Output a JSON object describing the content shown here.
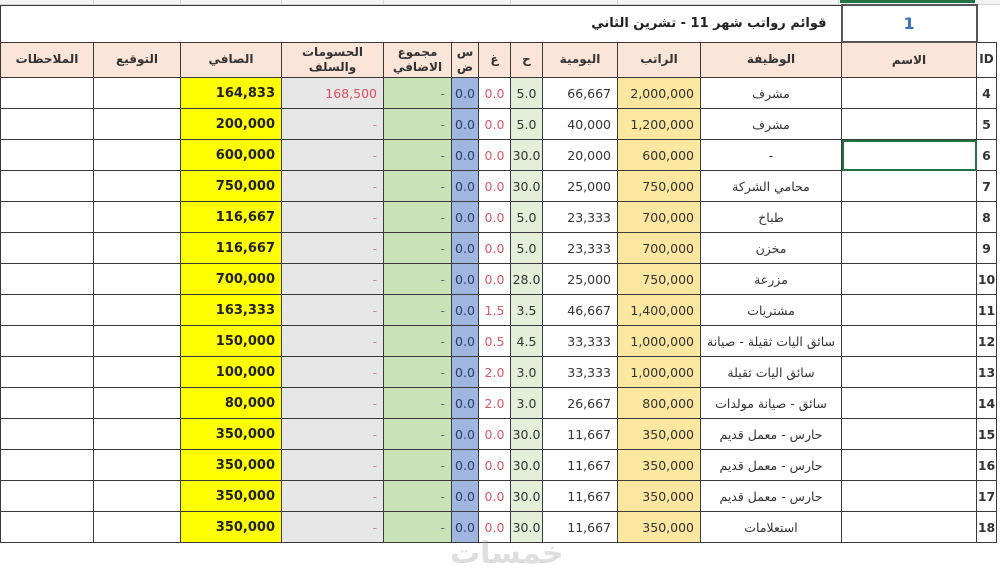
{
  "sheet": {
    "title": "قوائم رواتب شهر 11 - تشرين الثاني",
    "page_number": "1",
    "headers": {
      "notes": "الملاحظات",
      "signature": "التوقيع",
      "net": "الصافي",
      "deductions": "الحسومات والسلف",
      "overtime_total": "مجموع الاضافي",
      "sd": "س ض",
      "gh": "غ",
      "h": "ح",
      "daily": "اليومية",
      "salary": "الراتب",
      "job": "الوظيفة",
      "name": "الاسم",
      "id": "ID"
    },
    "rows": [
      {
        "id": "4",
        "name": "",
        "job": "مشرف",
        "salary": "2,000,000",
        "daily": "66,667",
        "h": "5.0",
        "gh": "0.0",
        "sd": "0.0",
        "overtime_total": "-",
        "deductions": "168,500",
        "net": "164,833",
        "signature": "",
        "notes": ""
      },
      {
        "id": "5",
        "name": "",
        "job": "مشرف",
        "salary": "1,200,000",
        "daily": "40,000",
        "h": "5.0",
        "gh": "0.0",
        "sd": "0.0",
        "overtime_total": "-",
        "deductions": "-",
        "net": "200,000",
        "signature": "",
        "notes": ""
      },
      {
        "id": "6",
        "name": "",
        "job": "-",
        "salary": "600,000",
        "daily": "20,000",
        "h": "30.0",
        "gh": "0.0",
        "sd": "0.0",
        "overtime_total": "-",
        "deductions": "-",
        "net": "600,000",
        "signature": "",
        "notes": ""
      },
      {
        "id": "7",
        "name": "",
        "job": "محامي الشركة",
        "salary": "750,000",
        "daily": "25,000",
        "h": "30.0",
        "gh": "0.0",
        "sd": "0.0",
        "overtime_total": "-",
        "deductions": "-",
        "net": "750,000",
        "signature": "",
        "notes": ""
      },
      {
        "id": "8",
        "name": "",
        "job": "طباخ",
        "salary": "700,000",
        "daily": "23,333",
        "h": "5.0",
        "gh": "0.0",
        "sd": "0.0",
        "overtime_total": "-",
        "deductions": "-",
        "net": "116,667",
        "signature": "",
        "notes": ""
      },
      {
        "id": "9",
        "name": "",
        "job": "مخزن",
        "salary": "700,000",
        "daily": "23,333",
        "h": "5.0",
        "gh": "0.0",
        "sd": "0.0",
        "overtime_total": "-",
        "deductions": "-",
        "net": "116,667",
        "signature": "",
        "notes": ""
      },
      {
        "id": "10",
        "name": "",
        "job": "مزرعة",
        "salary": "750,000",
        "daily": "25,000",
        "h": "28.0",
        "gh": "0.0",
        "sd": "0.0",
        "overtime_total": "-",
        "deductions": "-",
        "net": "700,000",
        "signature": "",
        "notes": ""
      },
      {
        "id": "11",
        "name": "",
        "job": "مشتريات",
        "salary": "1,400,000",
        "daily": "46,667",
        "h": "3.5",
        "gh": "1.5",
        "sd": "0.0",
        "overtime_total": "-",
        "deductions": "-",
        "net": "163,333",
        "signature": "",
        "notes": ""
      },
      {
        "id": "12",
        "name": "",
        "job": "سائق اليات ثقيلة - صيانة",
        "salary": "1,000,000",
        "daily": "33,333",
        "h": "4.5",
        "gh": "0.5",
        "sd": "0.0",
        "overtime_total": "-",
        "deductions": "-",
        "net": "150,000",
        "signature": "",
        "notes": ""
      },
      {
        "id": "13",
        "name": "",
        "job": "سائق اليات ثقيلة",
        "salary": "1,000,000",
        "daily": "33,333",
        "h": "3.0",
        "gh": "2.0",
        "sd": "0.0",
        "overtime_total": "-",
        "deductions": "-",
        "net": "100,000",
        "signature": "",
        "notes": ""
      },
      {
        "id": "14",
        "name": "",
        "job": "سائق - صيانة مولدات",
        "salary": "800,000",
        "daily": "26,667",
        "h": "3.0",
        "gh": "2.0",
        "sd": "0.0",
        "overtime_total": "-",
        "deductions": "-",
        "net": "80,000",
        "signature": "",
        "notes": ""
      },
      {
        "id": "15",
        "name": "",
        "job": "حارس - معمل قديم",
        "salary": "350,000",
        "daily": "11,667",
        "h": "30.0",
        "gh": "0.0",
        "sd": "0.0",
        "overtime_total": "-",
        "deductions": "-",
        "net": "350,000",
        "signature": "",
        "notes": ""
      },
      {
        "id": "16",
        "name": "",
        "job": "حارس - معمل قديم",
        "salary": "350,000",
        "daily": "11,667",
        "h": "30.0",
        "gh": "0.0",
        "sd": "0.0",
        "overtime_total": "-",
        "deductions": "-",
        "net": "350,000",
        "signature": "",
        "notes": ""
      },
      {
        "id": "17",
        "name": "",
        "job": "حارس - معمل قديم",
        "salary": "350,000",
        "daily": "11,667",
        "h": "30.0",
        "gh": "0.0",
        "sd": "0.0",
        "overtime_total": "-",
        "deductions": "-",
        "net": "350,000",
        "signature": "",
        "notes": ""
      },
      {
        "id": "18",
        "name": "",
        "job": "استعلامات",
        "salary": "350,000",
        "daily": "11,667",
        "h": "30.0",
        "gh": "0.0",
        "sd": "0.0",
        "overtime_total": "-",
        "deductions": "-",
        "net": "350,000",
        "signature": "",
        "notes": ""
      }
    ],
    "selected_row_id": "6",
    "colors": {
      "header_bg": "#fbe4d8",
      "net_bg": "#ffff00",
      "deductions_bg": "#e7e7e7",
      "overtime_bg": "#c9e2b8",
      "sd_bg": "#9fb7e0",
      "h_bg": "#e3efd9",
      "salary_bg": "#fce7a0",
      "selection": "#217346",
      "deduction_text": "#e05060",
      "page_number_text": "#3b6fb6"
    }
  },
  "watermark": "خمسات"
}
